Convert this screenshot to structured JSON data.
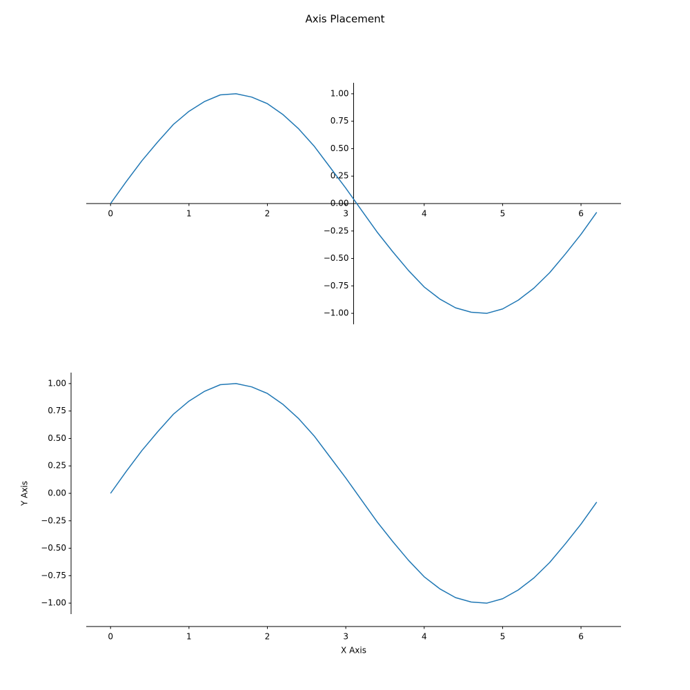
{
  "title": "Axis Placement",
  "chart_data": [
    {
      "type": "line",
      "spine_position": "center",
      "color": "#1f77b4",
      "x": [
        0,
        0.2,
        0.4,
        0.6,
        0.8,
        1.0,
        1.2,
        1.4,
        1.6,
        1.8,
        2.0,
        2.2,
        2.4,
        2.6,
        2.8,
        3.0,
        3.2,
        3.4,
        3.6,
        3.8,
        4.0,
        4.2,
        4.4,
        4.6,
        4.8,
        5.0,
        5.2,
        5.4,
        5.6,
        5.8,
        6.0,
        6.2
      ],
      "values": [
        0,
        0.2,
        0.39,
        0.56,
        0.72,
        0.84,
        0.93,
        0.99,
        1.0,
        0.97,
        0.91,
        0.81,
        0.68,
        0.52,
        0.33,
        0.14,
        -0.06,
        -0.26,
        -0.44,
        -0.61,
        -0.76,
        -0.87,
        -0.95,
        -0.99,
        -1.0,
        -0.96,
        -0.88,
        -0.77,
        -0.63,
        -0.46,
        -0.28,
        -0.08
      ],
      "xlim": [
        -0.31,
        6.51
      ],
      "ylim": [
        -1.1,
        1.1
      ],
      "xticks": [
        0,
        1,
        2,
        3,
        4,
        5,
        6
      ],
      "yticks": [
        {
          "value": -1,
          "label": "−1.00"
        },
        {
          "value": -0.75,
          "label": "−0.75"
        },
        {
          "value": -0.5,
          "label": "−0.50"
        },
        {
          "value": -0.25,
          "label": "−0.25"
        },
        {
          "value": 0,
          "label": "0.00"
        },
        {
          "value": 0.25,
          "label": "0.25"
        },
        {
          "value": 0.5,
          "label": "0.50"
        },
        {
          "value": 0.75,
          "label": "0.75"
        },
        {
          "value": 1,
          "label": "1.00"
        }
      ]
    },
    {
      "type": "line",
      "spine_position": "outward",
      "color": "#1f77b4",
      "xlabel": "X Axis",
      "ylabel": "Y Axis",
      "x": [
        0,
        0.2,
        0.4,
        0.6,
        0.8,
        1.0,
        1.2,
        1.4,
        1.6,
        1.8,
        2.0,
        2.2,
        2.4,
        2.6,
        2.8,
        3.0,
        3.2,
        3.4,
        3.6,
        3.8,
        4.0,
        4.2,
        4.4,
        4.6,
        4.8,
        5.0,
        5.2,
        5.4,
        5.6,
        5.8,
        6.0,
        6.2
      ],
      "values": [
        0,
        0.2,
        0.39,
        0.56,
        0.72,
        0.84,
        0.93,
        0.99,
        1.0,
        0.97,
        0.91,
        0.81,
        0.68,
        0.52,
        0.33,
        0.14,
        -0.06,
        -0.26,
        -0.44,
        -0.61,
        -0.76,
        -0.87,
        -0.95,
        -0.99,
        -1.0,
        -0.96,
        -0.88,
        -0.77,
        -0.63,
        -0.46,
        -0.28,
        -0.08
      ],
      "xlim": [
        -0.31,
        6.51
      ],
      "ylim": [
        -1.1,
        1.1
      ],
      "xticks": [
        0,
        1,
        2,
        3,
        4,
        5,
        6
      ],
      "yticks": [
        {
          "value": -1,
          "label": "−1.00"
        },
        {
          "value": -0.75,
          "label": "−0.75"
        },
        {
          "value": -0.5,
          "label": "−0.50"
        },
        {
          "value": -0.25,
          "label": "−0.25"
        },
        {
          "value": 0,
          "label": "0.00"
        },
        {
          "value": 0.25,
          "label": "0.25"
        },
        {
          "value": 0.5,
          "label": "0.50"
        },
        {
          "value": 0.75,
          "label": "0.75"
        },
        {
          "value": 1,
          "label": "1.00"
        }
      ]
    }
  ]
}
